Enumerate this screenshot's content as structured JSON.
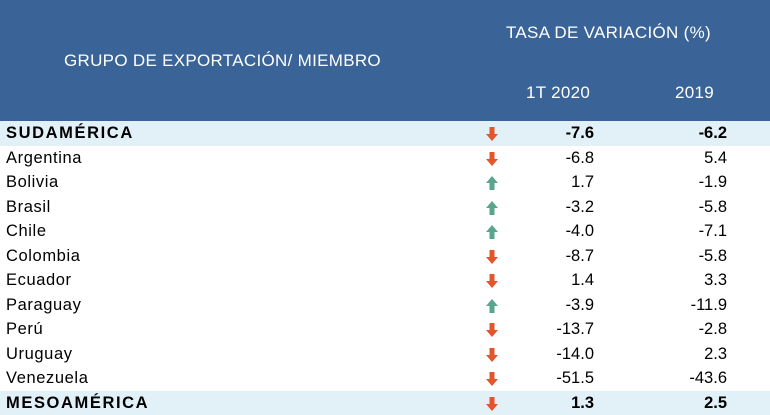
{
  "header": {
    "group_label": "GRUPO DE EXPORTACIÓN/ MIEMBRO",
    "rate_label": "TASA DE VARIACIÓN (%)",
    "col_q": "1T 2020",
    "col_y": "2019"
  },
  "colors": {
    "header_bg": "#3a6497",
    "total_bg": "#e2f0f7",
    "down": "#e2562b",
    "up": "#5aa58e"
  },
  "rows": [
    {
      "name": "SUDAMÉRICA",
      "total": true,
      "trend": "down",
      "q1_2020": "-7.6",
      "y2019": "-6.2"
    },
    {
      "name": "Argentina",
      "total": false,
      "trend": "down",
      "q1_2020": "-6.8",
      "y2019": "5.4"
    },
    {
      "name": "Bolivia",
      "total": false,
      "trend": "up",
      "q1_2020": "1.7",
      "y2019": "-1.9"
    },
    {
      "name": "Brasil",
      "total": false,
      "trend": "up",
      "q1_2020": "-3.2",
      "y2019": "-5.8"
    },
    {
      "name": "Chile",
      "total": false,
      "trend": "up",
      "q1_2020": "-4.0",
      "y2019": "-7.1"
    },
    {
      "name": "Colombia",
      "total": false,
      "trend": "down",
      "q1_2020": "-8.7",
      "y2019": "-5.8"
    },
    {
      "name": "Ecuador",
      "total": false,
      "trend": "down",
      "q1_2020": "1.4",
      "y2019": "3.3"
    },
    {
      "name": "Paraguay",
      "total": false,
      "trend": "up",
      "q1_2020": "-3.9",
      "y2019": "-11.9"
    },
    {
      "name": "Perú",
      "total": false,
      "trend": "down",
      "q1_2020": "-13.7",
      "y2019": "-2.8"
    },
    {
      "name": "Uruguay",
      "total": false,
      "trend": "down",
      "q1_2020": "-14.0",
      "y2019": "2.3"
    },
    {
      "name": "Venezuela",
      "total": false,
      "trend": "down",
      "q1_2020": "-51.5",
      "y2019": "-43.6"
    },
    {
      "name": "MESOAMÉRICA",
      "total": true,
      "trend": "down",
      "q1_2020": "1.3",
      "y2019": "2.5"
    }
  ]
}
